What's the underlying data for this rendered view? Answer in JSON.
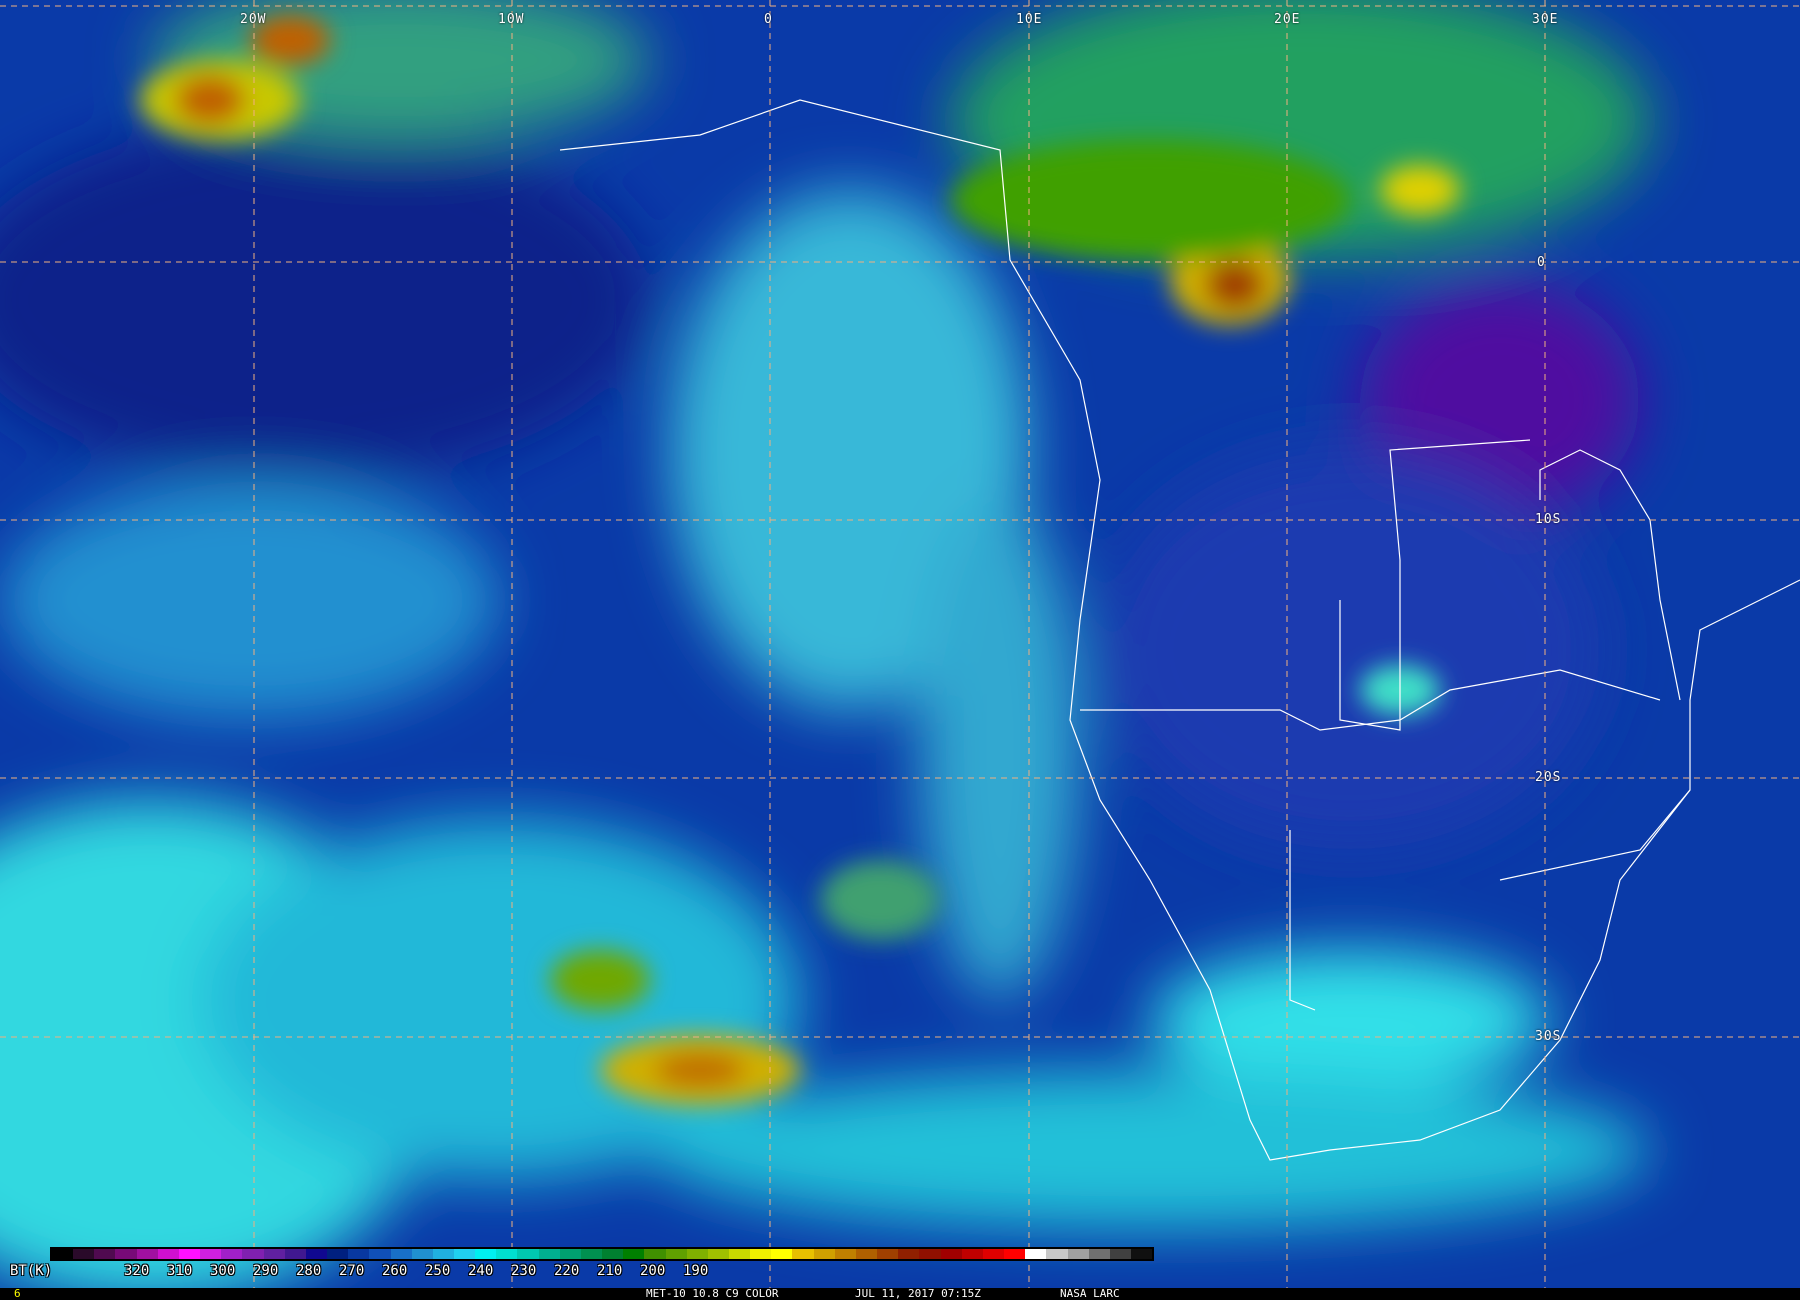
{
  "map": {
    "longitude_labels": [
      "20W",
      "10W",
      "0",
      "10E",
      "20E",
      "30E"
    ],
    "latitude_labels": [
      "0",
      "10S",
      "20S",
      "30S"
    ],
    "grid_color": "#f0b080"
  },
  "colorbar": {
    "unit_label": "BT(K)",
    "ticks": [
      "320",
      "310",
      "300",
      "290",
      "280",
      "270",
      "260",
      "250",
      "240",
      "230",
      "220",
      "210",
      "200",
      "190"
    ],
    "colors": [
      "#000000",
      "#2a0a2a",
      "#500a50",
      "#780a78",
      "#a010a0",
      "#d010d0",
      "#ff10ff",
      "#d020e0",
      "#a020c8",
      "#8020b0",
      "#6020a0",
      "#401890",
      "#100890",
      "#002080",
      "#0838a0",
      "#1050b8",
      "#1870c8",
      "#2090d0",
      "#20b0e0",
      "#20d0f0",
      "#00f0f0",
      "#00e0d0",
      "#00c8b0",
      "#00b090",
      "#00a070",
      "#009050",
      "#008030",
      "#008000",
      "#409000",
      "#60a000",
      "#80b000",
      "#a0c000",
      "#c8d800",
      "#f0f000",
      "#ffff00",
      "#e8c000",
      "#d0a000",
      "#c08000",
      "#b06000",
      "#a04000",
      "#902000",
      "#901000",
      "#a00000",
      "#c00000",
      "#e00000",
      "#ff0000",
      "#ffffff",
      "#c8c8c8",
      "#a0a0a0",
      "#707070",
      "#404040",
      "#101010"
    ]
  },
  "footer": {
    "frame": "6",
    "product": "MET-10 10.8 C9 COLOR",
    "datetime": "JUL 11, 2017 07:15Z",
    "credit": "NASA LARC"
  }
}
